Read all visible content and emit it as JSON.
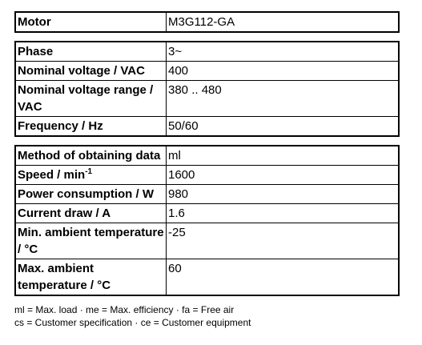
{
  "tables": [
    {
      "rows": [
        {
          "label": "Motor",
          "value": "M3G112-GA"
        }
      ]
    },
    {
      "rows": [
        {
          "label": "Phase",
          "value": "3~"
        },
        {
          "label": "Nominal voltage / VAC",
          "value": "400"
        },
        {
          "label": "Nominal voltage range / VAC",
          "value": "380 .. 480"
        },
        {
          "label": "Frequency / Hz",
          "value": "50/60"
        }
      ]
    },
    {
      "rows": [
        {
          "label": "Method of obtaining data",
          "value": "ml"
        },
        {
          "label": "Speed / min",
          "sup": "-1",
          "value": "1600"
        },
        {
          "label": "Power consumption / W",
          "value": "980"
        },
        {
          "label": "Current draw / A",
          "value": "1.6"
        },
        {
          "label": "Min. ambient temperature / °C",
          "value": "-25"
        },
        {
          "label": "Max. ambient temperature / °C",
          "value": "60"
        }
      ]
    }
  ],
  "notes": [
    "ml = Max. load · me = Max. efficiency · fa = Free air",
    "cs = Customer specification · ce = Customer equipment"
  ]
}
